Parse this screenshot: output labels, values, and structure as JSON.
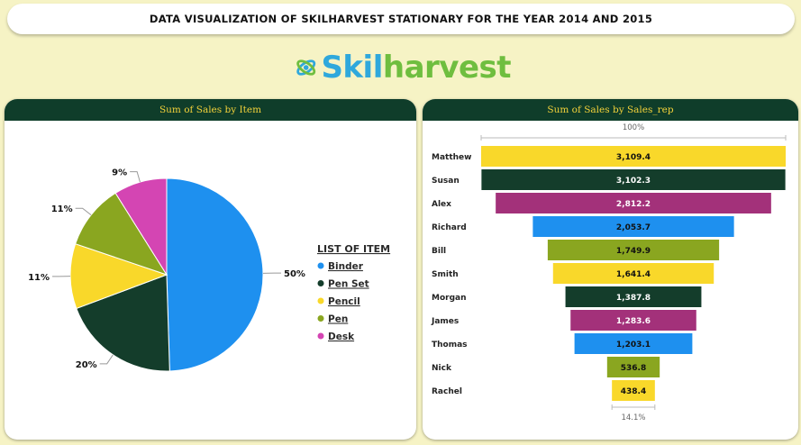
{
  "header": {
    "title": "DATA VISUALIZATION OF SKILHARVEST STATIONARY FOR THE YEAR 2014 AND 2015"
  },
  "logo": {
    "part1": "Skil",
    "part2": "harvest"
  },
  "colors": {
    "binder": "#1e90ef",
    "pen_set": "#143d2b",
    "pencil": "#f9d82a",
    "pen": "#8aa620",
    "desk": "#d445b3",
    "alex": "#a3317a",
    "header_bg": "#0f3d2a",
    "header_text": "#f2d13a"
  },
  "chart_data": [
    {
      "type": "pie",
      "title": "Sum of Sales by Item",
      "legend_title": "LIST OF ITEM",
      "legend_position": "right",
      "categories": [
        "Binder",
        "Pen Set",
        "Pencil",
        "Pen",
        "Desk"
      ],
      "values": [
        50,
        20,
        11,
        11,
        9
      ],
      "labels": [
        "50%",
        "20%",
        "11%",
        "11%",
        "9%"
      ],
      "colors": [
        "#1e90ef",
        "#143d2b",
        "#f9d82a",
        "#8aa620",
        "#d445b3"
      ]
    },
    {
      "type": "funnel",
      "title": "Sum of Sales by Sales_rep",
      "top_label": "100%",
      "bottom_label": "14.1%",
      "categories": [
        "Matthew",
        "Susan",
        "Alex",
        "Richard",
        "Bill",
        "Smith",
        "Morgan",
        "James",
        "Thomas",
        "Nick",
        "Rachel"
      ],
      "values": [
        3109.4,
        3102.3,
        2812.2,
        2053.7,
        1749.9,
        1641.4,
        1387.8,
        1283.6,
        1203.1,
        536.8,
        438.4
      ],
      "value_labels": [
        "3,109.4",
        "3,102.3",
        "2,812.2",
        "2,053.7",
        "1,749.9",
        "1,641.4",
        "1,387.8",
        "1,283.6",
        "1,203.1",
        "536.8",
        "438.4"
      ],
      "colors": [
        "#f9d82a",
        "#143d2b",
        "#a3317a",
        "#1e90ef",
        "#8aa620",
        "#f9d82a",
        "#143d2b",
        "#a3317a",
        "#1e90ef",
        "#8aa620",
        "#f9d82a"
      ]
    }
  ]
}
